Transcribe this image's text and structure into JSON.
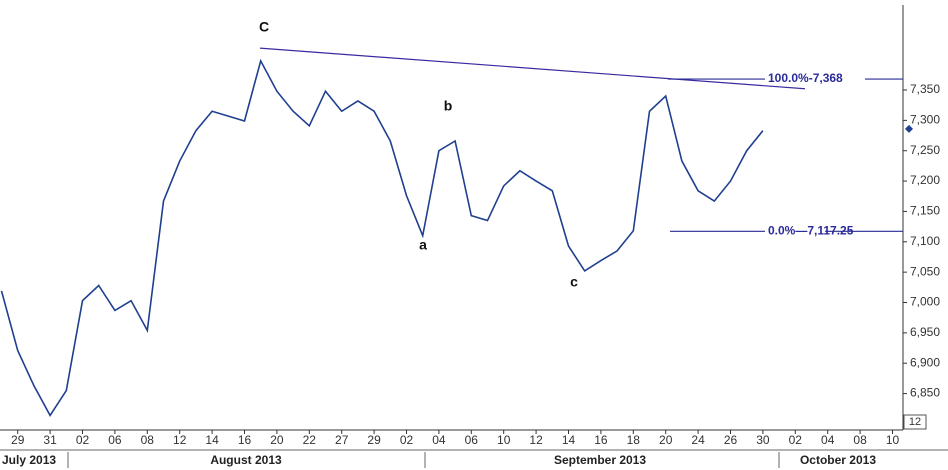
{
  "chart_data": {
    "type": "line",
    "categories": [
      null,
      "29",
      null,
      "31",
      null,
      "02",
      null,
      "06",
      null,
      "08",
      null,
      "12",
      null,
      "14",
      null,
      "16",
      null,
      "20",
      null,
      "22",
      null,
      "27",
      null,
      "29",
      null,
      "02",
      null,
      "04",
      null,
      "06",
      null,
      "10",
      null,
      "12",
      null,
      "14",
      null,
      "16",
      null,
      "18",
      null,
      "20",
      null,
      "24",
      null,
      "26",
      null,
      "30",
      null,
      "02",
      null,
      "04",
      null,
      "08",
      null,
      "10"
    ],
    "values": [
      7019,
      6921,
      6863,
      6814,
      6855,
      7003,
      7028,
      6987,
      7003,
      6954,
      7167,
      7233,
      7283,
      7315,
      7307,
      7299,
      7398,
      7348,
      7315,
      7291,
      7348,
      7315,
      7332,
      7315,
      7266,
      7176,
      7110,
      7250,
      7266,
      7143,
      7135,
      7192,
      7217,
      7200,
      7184,
      7093,
      7052,
      7069,
      7085,
      7118,
      7315,
      7340,
      7233,
      7184,
      7167,
      7200,
      7250,
      7283,
      null,
      null,
      null,
      null,
      null,
      null,
      null,
      null
    ],
    "color": "#1f3f8f",
    "month_labels": [
      "July 2013",
      "August 2013",
      "September 2013",
      "October 2013"
    ],
    "ylim": [
      6790,
      7490
    ],
    "yticks": [
      {
        "value": 6850,
        "label": "6,850"
      },
      {
        "value": 6900,
        "label": "6,900"
      },
      {
        "value": 6950,
        "label": "6,950"
      },
      {
        "value": 7000,
        "label": "7,000"
      },
      {
        "value": 7050,
        "label": "7,050"
      },
      {
        "value": 7100,
        "label": "7,100"
      },
      {
        "value": 7150,
        "label": "7,150"
      },
      {
        "value": 7200,
        "label": "7,200"
      },
      {
        "value": 7250,
        "label": "7,250"
      },
      {
        "value": 7300,
        "label": "7,300"
      },
      {
        "value": 7350,
        "label": "7,350"
      }
    ],
    "annotations": [
      "C",
      "a",
      "b",
      "c"
    ],
    "trendline": [
      7419,
      7352
    ],
    "fib_levels": [
      {
        "label": "100.0%-7,368",
        "value": 7368
      },
      {
        "label": "0.0%—7,117.25",
        "value": 7117.25
      }
    ],
    "last_price": 7286,
    "badge": "12"
  }
}
